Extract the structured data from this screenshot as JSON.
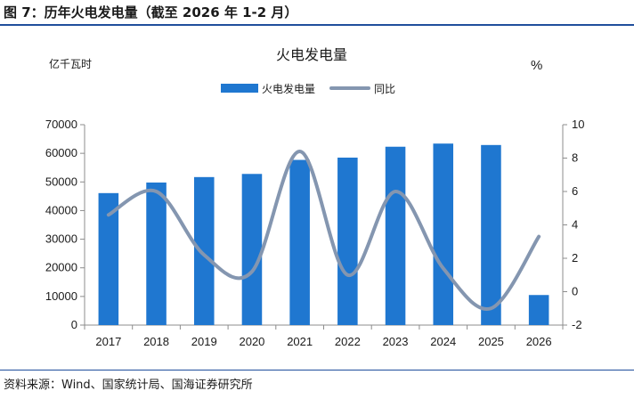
{
  "figure": {
    "title": "图 7：历年火电发电量（截至 2026 年 1-2 月）",
    "source": "资料来源：Wind、国家统计局、国海证券研究所"
  },
  "colors": {
    "bar": "#1f77d0",
    "line": "#8496b0",
    "rule": "#1f4e9c",
    "axis": "#8c8c8c"
  },
  "chart_data": {
    "type": "bar",
    "title": "火电发电量",
    "ylabel_left": "亿千瓦时",
    "ylabel_right": "%",
    "categories": [
      "2017",
      "2018",
      "2019",
      "2020",
      "2021",
      "2022",
      "2023",
      "2024",
      "2025",
      "2026"
    ],
    "series": [
      {
        "name": "火电发电量",
        "type": "bar",
        "axis": "left",
        "values": [
          46100,
          49800,
          51700,
          52800,
          57700,
          58500,
          62300,
          63400,
          62900,
          10500
        ]
      },
      {
        "name": "同比",
        "type": "line",
        "axis": "right",
        "smooth": true,
        "values": [
          4.6,
          6.0,
          2.2,
          1.2,
          8.4,
          1.0,
          6.0,
          1.4,
          -1.0,
          3.3
        ]
      }
    ],
    "ylim_left": [
      0,
      70000
    ],
    "yticks_left": [
      "0",
      "10000",
      "20000",
      "30000",
      "40000",
      "50000",
      "60000",
      "70000"
    ],
    "ylim_right": [
      -2,
      10
    ],
    "yticks_right": [
      "-2",
      "0",
      "2",
      "4",
      "6",
      "8",
      "10"
    ],
    "legend_position": "top-center"
  }
}
